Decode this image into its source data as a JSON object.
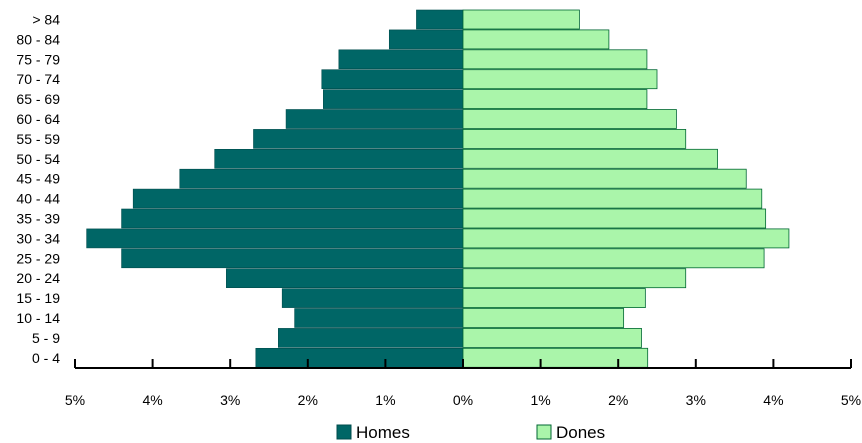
{
  "chart_data": {
    "type": "bar",
    "orientation": "horizontal",
    "categories": [
      "> 84",
      "80 - 84",
      "75 - 79",
      "70 - 74",
      "65 - 69",
      "60 - 64",
      "55 - 59",
      "50 - 54",
      "45 - 49",
      "40 - 44",
      "35 - 39",
      "30 - 34",
      "25 - 29",
      "20 - 24",
      "15 - 19",
      "10 - 14",
      "5 - 9",
      "0 - 4"
    ],
    "series": [
      {
        "name": "Homes",
        "color": "#006666",
        "values": [
          0.6,
          0.95,
          1.6,
          1.82,
          1.8,
          2.28,
          2.7,
          3.2,
          3.65,
          4.25,
          4.4,
          4.85,
          4.4,
          3.05,
          2.33,
          2.17,
          2.38,
          2.67
        ]
      },
      {
        "name": "Dones",
        "color": "#aaf5aa",
        "values": [
          1.5,
          1.88,
          2.37,
          2.5,
          2.37,
          2.75,
          2.87,
          3.28,
          3.65,
          3.85,
          3.9,
          4.2,
          3.88,
          2.87,
          2.35,
          2.07,
          2.3,
          2.38
        ]
      }
    ],
    "xlim": [
      -5,
      5
    ],
    "xticks": [
      "5%",
      "4%",
      "3%",
      "2%",
      "1%",
      "0%",
      "1%",
      "2%",
      "3%",
      "4%",
      "5%"
    ],
    "title": "",
    "xlabel": "",
    "ylabel": "",
    "grid": false,
    "legend_position": "bottom"
  }
}
